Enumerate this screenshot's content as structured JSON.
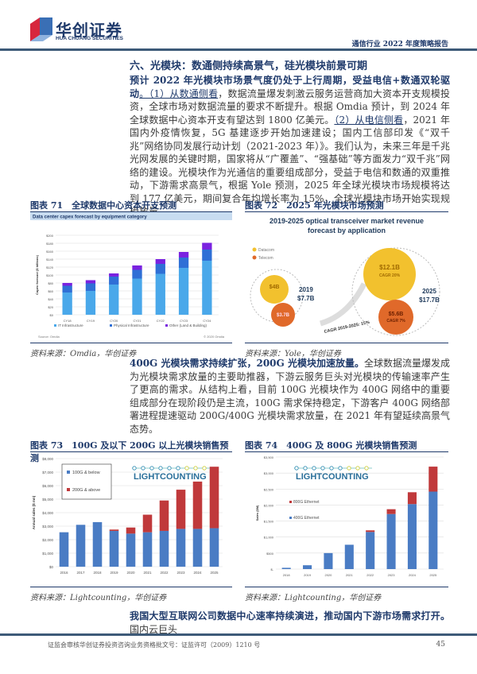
{
  "header": {
    "logo_cn": "华创证券",
    "logo_en": "HUA CHUANG SECURITIES",
    "report_title": "通信行业 2022 年度策略报告",
    "brand_colors": {
      "navy": "#1f3a6b",
      "red": "#d7263d",
      "blue": "#3a6fb5"
    }
  },
  "section_title": "六、光模块：数通侧持续高景气，硅光模块前景可期",
  "para1": {
    "bold": "预计 2022 年光模块市场景气度仍处于上行周期，受益电信+数通双轮驱动",
    "u1": "。（1）从数通侧看",
    "t1": "，数据流量爆发刺激云服务运营商加大资本开支规模投资，全球市场对数据流量的要求不断提升。根据 Omdia 预计，到 2024 年全球数据中心资本开支有望达到 1800 亿美元。",
    "u2": "（2）从电信侧看",
    "t2": "，2021 年国内外疫情恢复，5G 基建逐步开始加速建设；国内工信部印发《“双千兆”网络协同发展行动计划（2021-2023 年）》。我们认为，未来三年是千兆光网发展的关键时期，国家将从“广覆盖”、“强基础”等方面发力“双千兆”网络的建设。光模块作为光通信的重要组成部分，受益于电信和数通的双重推动，下游需求高景气，根据 Yole 预测，2025 年全球光模块市场规模将达到 177 亿美元，期间复合年均增长率为 15%，全球光模块市场开始实现规模放量。"
  },
  "para2": {
    "bold": "400G 光模块需求持续扩张，200G 光模块加速放量。",
    "text": "全球数据流量爆发成为光模块需求放量的主要助推器，下游云服务巨头对光模块的传输速率产生了更高的需求。从结构上看，目前 100G 光模块作为 400G 网络中的重要组成部分在现阶段仍是主流，100G 需求保持稳定，下游客户 400G 网络部署进程提速驱动 200G/400G 光模块需求放量，在 2021 年有望延续高景气态势。"
  },
  "para3": {
    "bold": "我国大型互联网公司数据中心速率持续演进，推动国内下游市场需求打开。",
    "text": "国内云巨头"
  },
  "figures": {
    "f71": {
      "caption": "图表 71　全球数据中心资本开支预测",
      "source": "资料来源：Omdia，华创证券"
    },
    "f72": {
      "caption": "图表 72　2025 年光模块市场预测",
      "source": "资料来源：Yole，华创证券"
    },
    "f73": {
      "caption": "图表 73　100G 及以下 200G 以上光模块销售预测",
      "source": "资料来源：Lightcounting，华创证券"
    },
    "f74": {
      "caption": "图表 74　400G 及 800G 光模块销售预测",
      "source": "资料来源：Lightcounting，华创证券"
    }
  },
  "chart_data": [
    {
      "type": "bar",
      "stacked": true,
      "title": "Data center capex forecast by equipment category",
      "ylabel": "Capex forecast ($ billions)",
      "ylim": [
        0,
        200
      ],
      "yticks": [
        "$0",
        "$20",
        "$40",
        "$60",
        "$80",
        "$100",
        "$120",
        "$140",
        "$160",
        "$180",
        "$200"
      ],
      "categories": [
        "CY18",
        "CY19",
        "CY20",
        "CY21",
        "CY22",
        "CY23",
        "CY24"
      ],
      "series": [
        {
          "name": "IT Infrastructure",
          "color": "#4aa8ea",
          "values": [
            56,
            60,
            76,
            91,
            103,
            118,
            136
          ]
        },
        {
          "name": "Physical Infrastructure",
          "color": "#2f6fd6",
          "values": [
            17,
            19,
            20,
            22,
            25,
            26,
            28
          ]
        },
        {
          "name": "Other (Land & Building)",
          "color": "#7a22e0",
          "values": [
            7,
            8,
            8,
            11,
            12,
            14,
            17
          ]
        }
      ],
      "source_note": "Source: Omdia",
      "copyright": "© 2020 Omdia",
      "grid": true,
      "legend": "bottom"
    },
    {
      "type": "bubble",
      "title": "2019-2025 optical transceiver market revenue forecast by application",
      "legend": [
        "Datacom",
        "Telecom"
      ],
      "colors": {
        "Datacom": "#f2c12e",
        "Telecom": "#e0692a"
      },
      "points": [
        {
          "year": "2019",
          "total": "$7.7B",
          "datacom": "$4B",
          "telecom": "$3.7B"
        },
        {
          "year": "2025",
          "total": "$17.7B",
          "datacom": "$12.1B",
          "datacom_cagr": "CAGR 20%",
          "telecom": "$5.6B",
          "telecom_cagr": "CAGR 7%"
        }
      ],
      "cagr": "CAGR 2019-2025: 15%"
    },
    {
      "type": "bar",
      "stacked": true,
      "ylabel": "Annual sales ($ mn)",
      "ylim": [
        0,
        8000
      ],
      "yticks": [
        "$0",
        "$1,000",
        "$2,000",
        "$3,000",
        "$4,000",
        "$5,000",
        "$6,000",
        "$7,000",
        "$8,000"
      ],
      "categories": [
        "2016",
        "2017",
        "2018",
        "2019",
        "2020",
        "2021",
        "2022",
        "2023",
        "2024",
        "2025"
      ],
      "series": [
        {
          "name": "100G & below",
          "color": "#4a7cc4",
          "values": [
            2550,
            3100,
            3300,
            2650,
            2450,
            2550,
            2650,
            2800,
            2800,
            2850
          ]
        },
        {
          "name": "200G & above",
          "color": "#c0393b",
          "values": [
            0,
            0,
            0,
            100,
            450,
            1300,
            2250,
            2900,
            3500,
            4550
          ]
        }
      ],
      "logo": "LIGHTCOUNTING",
      "legend": "top-left",
      "grid": true
    },
    {
      "type": "bar",
      "stacked": true,
      "ylabel": "Sales ($M)",
      "ylim": [
        0,
        3500
      ],
      "yticks": [
        "$-",
        "$500",
        "$1,000",
        "$1,500",
        "$2,000",
        "$2,500",
        "$3,000",
        "$3,500"
      ],
      "categories": [
        "2018",
        "2019",
        "2020",
        "2021",
        "2022",
        "2023",
        "2024",
        "2025"
      ],
      "series": [
        {
          "name": "400G Ethernet",
          "color": "#4a7cc4",
          "values": [
            40,
            120,
            500,
            760,
            1160,
            1720,
            2030,
            2420
          ]
        },
        {
          "name": "800G Ethernet",
          "color": "#c0393b",
          "values": [
            0,
            0,
            0,
            0,
            50,
            150,
            370,
            780
          ]
        }
      ],
      "logo": "LIGHTCOUNTING",
      "legend": "top-left",
      "grid": true
    }
  ],
  "footer": {
    "license": "证监会审核华创证券投资咨询业务资格批文号：证监许可（2009）1210 号",
    "page": "45"
  }
}
